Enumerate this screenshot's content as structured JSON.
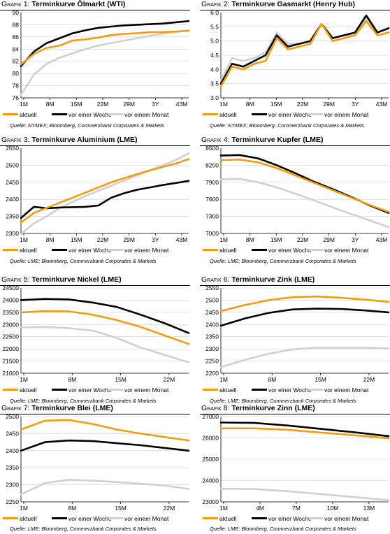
{
  "series_names": [
    "aktuell",
    "vor einer Woche",
    "vor einem Monat"
  ],
  "series_colors": [
    "#f39c12",
    "#000000",
    "#d0d0d0"
  ],
  "grafik_label": "Grafik",
  "panels": [
    {
      "number": "1:",
      "title": "Terminkurve Ölmarkt (WTI)",
      "source": "Quelle: NYMEX; Bloomberg, Commerzbank Corporates & Markets",
      "chart_data": {
        "type": "line",
        "x_ticks": [
          "1M",
          "8M",
          "15M",
          "22M",
          "29M",
          "3Y",
          "43M"
        ],
        "y_ticks": [
          "76",
          "78",
          "80",
          "82",
          "84",
          "86",
          "88",
          "90"
        ],
        "ylim": [
          76,
          90
        ],
        "grid": "horizontal",
        "series": [
          {
            "name": "aktuell",
            "values": [
              81.5,
              83.2,
              84.2,
              84.6,
              85.4,
              85.6,
              85.9,
              86.3,
              86.5,
              86.6,
              86.8,
              86.8,
              86.9,
              87.0
            ]
          },
          {
            "name": "vor einer Woche",
            "values": [
              81.2,
              83.6,
              85.0,
              85.8,
              86.6,
              87.1,
              87.5,
              87.7,
              87.9,
              88.0,
              88.1,
              88.2,
              88.4,
              88.6
            ]
          },
          {
            "name": "vor einem Monat",
            "values": [
              76.5,
              79.8,
              81.6,
              82.6,
              83.3,
              84.0,
              84.6,
              85.0,
              85.4,
              85.8,
              86.2,
              86.5,
              86.8,
              87.1
            ]
          }
        ]
      }
    },
    {
      "number": "2:",
      "title": "Terminkurve Gasmarkt (Henry Hub)",
      "source": "Quelle: NYMEX; Bloomberg, Commerzbank Corporates & Markets",
      "chart_data": {
        "type": "line",
        "x_ticks": [
          "1M",
          "8M",
          "15M",
          "22M",
          "29M",
          "3Y",
          "43M"
        ],
        "y_ticks": [
          "3.0",
          "3.5",
          "4.0",
          "4.5",
          "5.0",
          "5.5",
          "6.0"
        ],
        "ylim": [
          3.0,
          6.0
        ],
        "grid": "horizontal",
        "series": [
          {
            "name": "aktuell",
            "values": [
              3.4,
              4.1,
              4.0,
              4.2,
              4.3,
              5.1,
              4.7,
              4.8,
              4.9,
              5.6,
              5.0,
              5.1,
              5.2,
              5.7,
              5.2,
              5.3
            ]
          },
          {
            "name": "vor einer Woche",
            "values": [
              3.5,
              4.2,
              4.1,
              4.3,
              4.5,
              5.2,
              4.8,
              4.9,
              5.0,
              5.6,
              5.1,
              5.2,
              5.3,
              5.9,
              5.3,
              5.45
            ]
          },
          {
            "name": "vor einem Monat",
            "values": [
              3.6,
              4.4,
              4.3,
              4.4,
              4.6,
              5.3,
              4.9,
              4.9,
              5.0,
              5.6,
              5.1,
              5.2,
              5.2,
              5.8,
              5.2,
              5.3
            ]
          }
        ]
      }
    },
    {
      "number": "3:",
      "title": "Terminkurve Aluminium (LME)",
      "source": "Quelle: LME; Bloomberg, Commerzbank Corporates & Markets",
      "chart_data": {
        "type": "line",
        "x_ticks": [
          "1M",
          "8M",
          "15M",
          "22M",
          "29M",
          "3Y",
          "43M"
        ],
        "y_ticks": [
          "2300",
          "2350",
          "2400",
          "2450",
          "2500",
          "2550"
        ],
        "ylim": [
          2300,
          2550
        ],
        "grid": "horizontal",
        "series": [
          {
            "name": "aktuell",
            "values": [
              2332,
              2360,
              2375,
              2390,
              2405,
              2420,
              2435,
              2450,
              2462,
              2474,
              2485,
              2495,
              2505,
              2518
            ]
          },
          {
            "name": "vor einer Woche",
            "values": [
              2345,
              2378,
              2374,
              2376,
              2377,
              2378,
              2382,
              2405,
              2418,
              2428,
              2435,
              2442,
              2448,
              2454
            ]
          },
          {
            "name": "vor einem Monat",
            "values": [
              2298,
              2330,
              2350,
              2375,
              2392,
              2410,
              2425,
              2440,
              2455,
              2470,
              2485,
              2500,
              2515,
              2535
            ]
          }
        ]
      }
    },
    {
      "number": "4:",
      "title": "Terminkurve Kupfer (LME)",
      "source": "Quelle: LME; Bloomberg, Commerzbank Corporates & Markets",
      "chart_data": {
        "type": "line",
        "x_ticks": [
          "1M",
          "8M",
          "15M",
          "22M",
          "29M",
          "3Y",
          "43M"
        ],
        "y_ticks": [
          "7000",
          "7300",
          "7600",
          "7900",
          "8200",
          "8500"
        ],
        "ylim": [
          7000,
          8500
        ],
        "grid": "horizontal",
        "series": [
          {
            "name": "aktuell",
            "values": [
              8290,
              8300,
              8250,
              8150,
              8020,
              7890,
              7760,
              7630,
              7500,
              7380
            ]
          },
          {
            "name": "vor einer Woche",
            "values": [
              8370,
              8380,
              8320,
              8200,
              8060,
              7910,
              7780,
              7640,
              7490,
              7360
            ]
          },
          {
            "name": "vor einem Monat",
            "values": [
              7950,
              7960,
              7900,
              7810,
              7700,
              7580,
              7460,
              7340,
              7230,
              7110
            ]
          }
        ]
      }
    },
    {
      "number": "5:",
      "title": "Terminkurve Nickel (LME)",
      "source": "Quelle: LME; Bloomberg, Commerzbank Corporates & Markets",
      "chart_data": {
        "type": "line",
        "x_ticks": [
          "1M",
          "8M",
          "15M",
          "22M"
        ],
        "y_ticks": [
          "21000",
          "21500",
          "22000",
          "22500",
          "23000",
          "23500",
          "24000",
          "24500"
        ],
        "ylim": [
          21000,
          24500
        ],
        "grid": "horizontal",
        "series": [
          {
            "name": "aktuell",
            "values": [
              23500,
              23550,
              23540,
              23400,
              23180,
              22900,
              22550,
              22200
            ]
          },
          {
            "name": "vor einer Woche",
            "values": [
              24000,
              24050,
              24030,
              23900,
              23720,
              23400,
              23050,
              22650
            ]
          },
          {
            "name": "vor einem Monat",
            "values": [
              22880,
              22900,
              22850,
              22750,
              22450,
              22050,
              21750,
              21450
            ]
          }
        ]
      }
    },
    {
      "number": "6:",
      "title": "Terminkurve Zink (LME)",
      "source": "Quelle: LME; Bloomberg, Commerzbank Corporates & Markets",
      "chart_data": {
        "type": "line",
        "x_ticks": [
          "1M",
          "8M",
          "15M",
          "22M"
        ],
        "y_ticks": [
          "2200",
          "2250",
          "2300",
          "2350",
          "2400",
          "2450",
          "2500",
          "2550"
        ],
        "ylim": [
          2200,
          2550
        ],
        "grid": "horizontal",
        "series": [
          {
            "name": "aktuell",
            "values": [
              2455,
              2480,
              2500,
              2512,
              2515,
              2510,
              2502,
              2493
            ]
          },
          {
            "name": "vor einer Woche",
            "values": [
              2395,
              2425,
              2448,
              2462,
              2465,
              2464,
              2458,
              2450
            ]
          },
          {
            "name": "vor einem Monat",
            "values": [
              2225,
              2255,
              2280,
              2298,
              2305,
              2305,
              2305,
              2302
            ]
          }
        ]
      }
    },
    {
      "number": "7:",
      "title": "Terminkurve Blei (LME)",
      "source": "Quelle: LME; Bloomberg, Commerzbank Corporates & Markets",
      "chart_data": {
        "type": "line",
        "x_ticks": [
          "1M",
          "8M",
          "15M",
          "22M"
        ],
        "y_ticks": [
          "2250",
          "2300",
          "2350",
          "2400",
          "2450",
          "2500"
        ],
        "ylim": [
          2250,
          2500
        ],
        "grid": "horizontal",
        "series": [
          {
            "name": "aktuell",
            "values": [
              2462,
              2488,
              2490,
              2478,
              2462,
              2450,
              2440,
              2430
            ]
          },
          {
            "name": "vor einer Woche",
            "values": [
              2400,
              2425,
              2430,
              2428,
              2422,
              2416,
              2408,
              2400
            ]
          },
          {
            "name": "vor einem Monat",
            "values": [
              2272,
              2305,
              2315,
              2312,
              2308,
              2303,
              2298,
              2288
            ]
          }
        ]
      }
    },
    {
      "number": "8:",
      "title": "Terminkurve Zinn (LME)",
      "source": "Quelle: LME; Bloomberg, Commerzbank Corporates & Markets",
      "chart_data": {
        "type": "line",
        "x_ticks": [
          "1M",
          "4M",
          "7M",
          "10M",
          "13M"
        ],
        "y_ticks": [
          "23000",
          "24000",
          "25000",
          "26000",
          "27000"
        ],
        "ylim": [
          23000,
          27000
        ],
        "grid": "horizontal",
        "series": [
          {
            "name": "aktuell",
            "values": [
              26450,
              26450,
              26380,
              26250,
              26120,
              25980
            ]
          },
          {
            "name": "vor einer Woche",
            "values": [
              26720,
              26700,
              26580,
              26420,
              26260,
              26080
            ]
          },
          {
            "name": "vor einem Monat",
            "values": [
              23620,
              23600,
              23500,
              23360,
              23220,
              23080
            ]
          }
        ]
      }
    }
  ]
}
